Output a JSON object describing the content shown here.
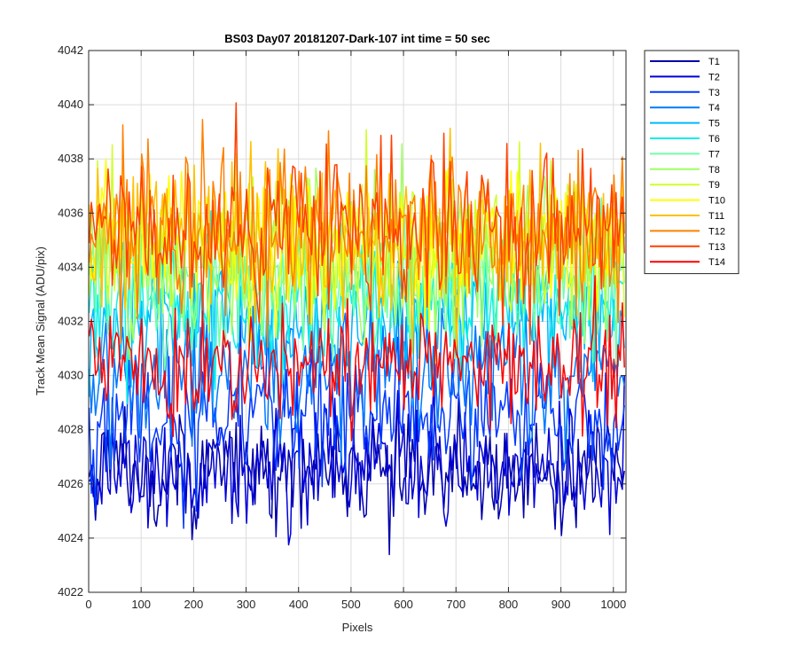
{
  "chart_data": {
    "type": "line",
    "title": "BS03 Day07 20181207-Dark-107 int time = 50 sec",
    "xlabel": "Pixels",
    "ylabel": "Track Mean Signal (ADU/pix)",
    "xlim": [
      0,
      1024
    ],
    "ylim": [
      4022,
      4042
    ],
    "xticks": [
      0,
      100,
      200,
      300,
      400,
      500,
      600,
      700,
      800,
      900,
      1000
    ],
    "yticks": [
      4022,
      4024,
      4026,
      4028,
      4030,
      4032,
      4034,
      4036,
      4038,
      4040,
      4042
    ],
    "grid": true,
    "legend_position": "outside-top-right",
    "x_sampling": {
      "start": 1,
      "end": 1024,
      "step": 4
    },
    "series": [
      {
        "name": "T1",
        "color": "#0000a8",
        "mean": 4026.5,
        "noise": 1.1
      },
      {
        "name": "T2",
        "color": "#0000d8",
        "mean": 4026.6,
        "noise": 1.1
      },
      {
        "name": "T3",
        "color": "#0038ff",
        "mean": 4028.5,
        "noise": 1.2
      },
      {
        "name": "T4",
        "color": "#0078ff",
        "mean": 4030.2,
        "noise": 1.3
      },
      {
        "name": "T5",
        "color": "#00b8ff",
        "mean": 4032.0,
        "noise": 1.3
      },
      {
        "name": "T6",
        "color": "#10f0e8",
        "mean": 4032.8,
        "noise": 1.3
      },
      {
        "name": "T7",
        "color": "#70ffa8",
        "mean": 4033.5,
        "noise": 1.3
      },
      {
        "name": "T8",
        "color": "#a0ff60",
        "mean": 4034.2,
        "noise": 1.4
      },
      {
        "name": "T9",
        "color": "#d0ff28",
        "mean": 4034.8,
        "noise": 1.4
      },
      {
        "name": "T10",
        "color": "#ffff00",
        "mean": 4035.0,
        "noise": 1.4
      },
      {
        "name": "T11",
        "color": "#ffc000",
        "mean": 4035.2,
        "noise": 1.4
      },
      {
        "name": "T12",
        "color": "#ff8000",
        "mean": 4035.5,
        "noise": 1.4
      },
      {
        "name": "T13",
        "color": "#ff4000",
        "mean": 4035.3,
        "noise": 1.4
      },
      {
        "name": "T14",
        "color": "#ff0000",
        "mean": 4030.5,
        "noise": 1.1
      }
    ]
  }
}
